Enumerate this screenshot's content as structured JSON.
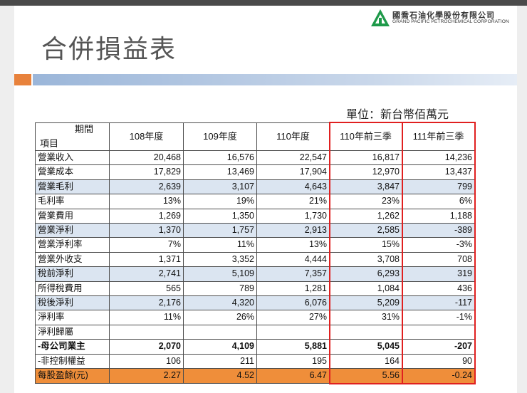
{
  "company": {
    "name_cn": "國喬石油化學股份有限公司",
    "name_en": "GRAND PACIFIC PETROCHEMICAL CORPORATION",
    "logo_color": "#1e9a4a"
  },
  "title": "合併損益表",
  "unit": "單位：新台幣佰萬元",
  "table": {
    "header_period": "期間",
    "header_item": "項目",
    "columns": [
      "108年度",
      "109年度",
      "110年度",
      "110年前三季",
      "111年前三季"
    ],
    "rows": [
      {
        "label": "營業收入",
        "values": [
          "20,468",
          "16,576",
          "22,547",
          "16,817",
          "14,236"
        ]
      },
      {
        "label": "營業成本",
        "values": [
          "17,829",
          "13,469",
          "17,904",
          "12,970",
          "13,437"
        ]
      },
      {
        "label": "營業毛利",
        "values": [
          "2,639",
          "3,107",
          "4,643",
          "3,847",
          "799"
        ]
      },
      {
        "label": "毛利率",
        "values": [
          "13%",
          "19%",
          "21%",
          "23%",
          "6%"
        ]
      },
      {
        "label": "營業費用",
        "values": [
          "1,269",
          "1,350",
          "1,730",
          "1,262",
          "1,188"
        ]
      },
      {
        "label": "營業淨利",
        "values": [
          "1,370",
          "1,757",
          "2,913",
          "2,585",
          "-389"
        ]
      },
      {
        "label": "營業淨利率",
        "values": [
          "7%",
          "11%",
          "13%",
          "15%",
          "-3%"
        ]
      },
      {
        "label": "營業外收支",
        "values": [
          "1,371",
          "3,352",
          "4,444",
          "3,708",
          "708"
        ]
      },
      {
        "label": "稅前淨利",
        "values": [
          "2,741",
          "5,109",
          "7,357",
          "6,293",
          "319"
        ]
      },
      {
        "label": "所得稅費用",
        "values": [
          "565",
          "789",
          "1,281",
          "1,084",
          "436"
        ]
      },
      {
        "label": "稅後淨利",
        "values": [
          "2,176",
          "4,320",
          "6,076",
          "5,209",
          "-117"
        ]
      },
      {
        "label": "淨利率",
        "values": [
          "11%",
          "26%",
          "27%",
          "31%",
          "-1%"
        ]
      },
      {
        "label": "淨利歸屬",
        "values": [
          "",
          "",
          "",
          "",
          ""
        ]
      },
      {
        "label": " -母公司業主",
        "values": [
          "2,070",
          "4,109",
          "5,881",
          "5,045",
          "-207"
        ]
      },
      {
        "label": " -非控制權益",
        "values": [
          "106",
          "211",
          "195",
          "164",
          "90"
        ]
      },
      {
        "label": "每股盈餘(元)",
        "values": [
          "2.27",
          "4.52",
          "6.47",
          "5.56",
          "-0.24"
        ]
      }
    ]
  },
  "colors": {
    "stripe_row": "#dbe5f1",
    "eps_row": "#ef8e3a",
    "highlight_box": "#e02020",
    "title_text": "#555555"
  }
}
